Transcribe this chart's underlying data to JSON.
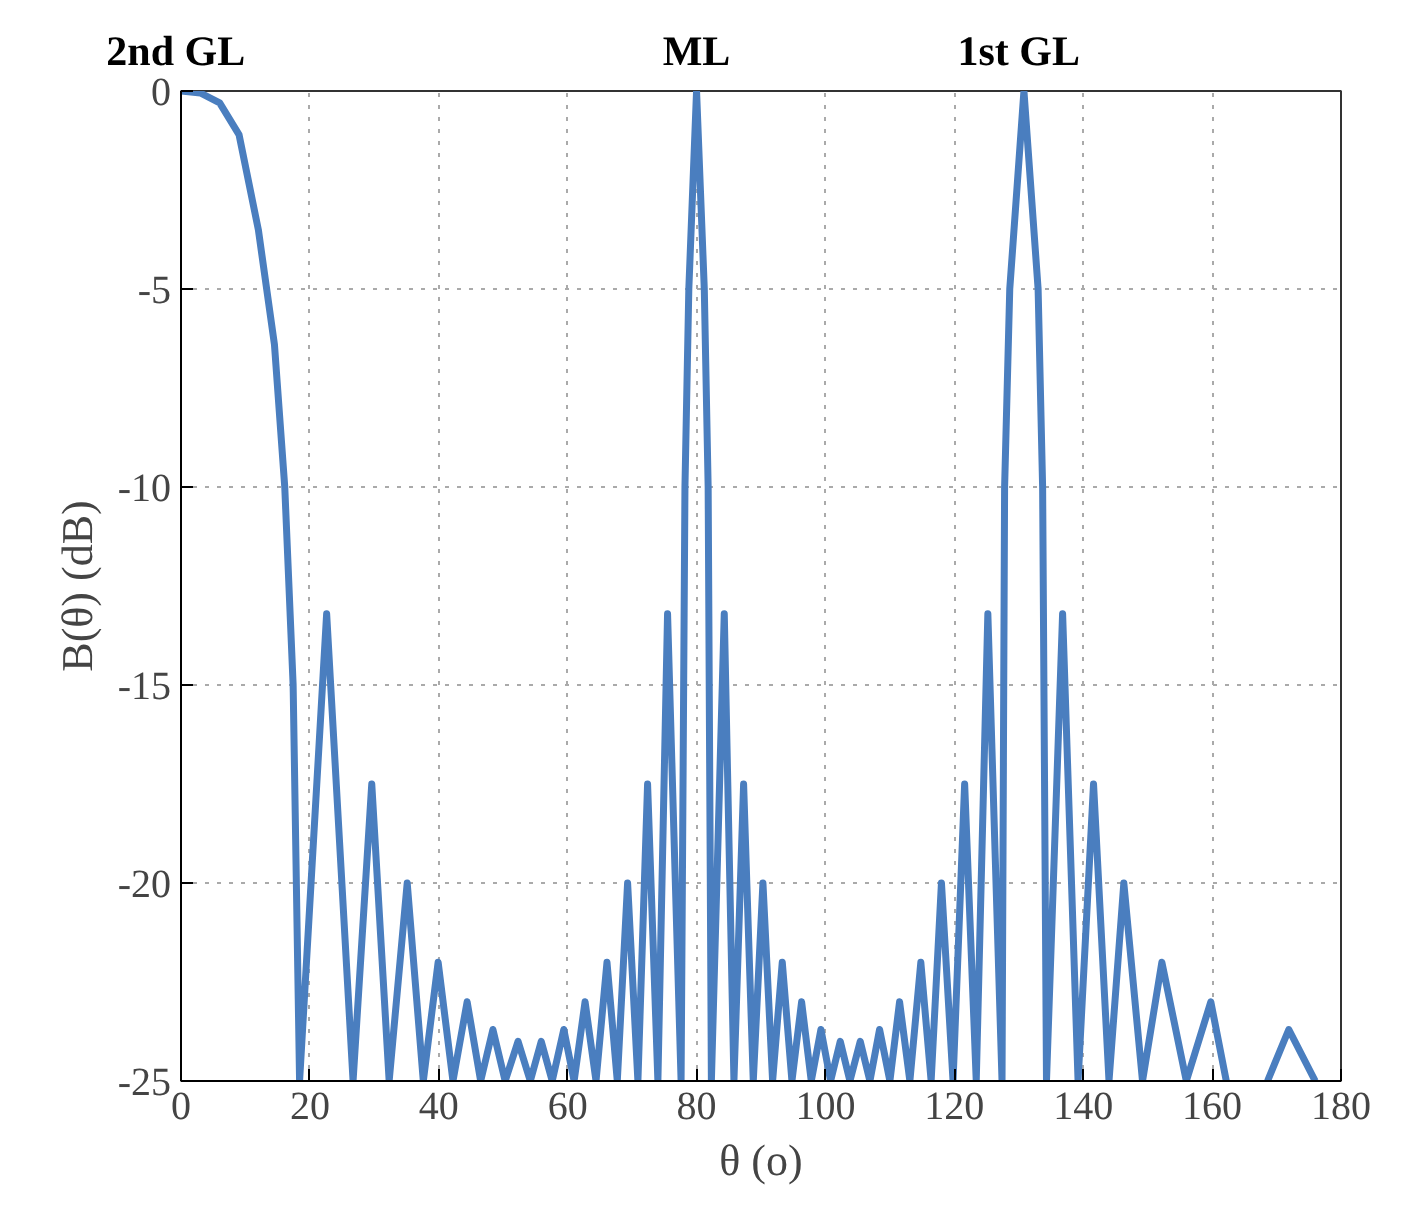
{
  "chart_data": {
    "type": "line",
    "xlabel": "θ (o)",
    "ylabel": "B(θ) (dB)",
    "xlim": [
      0,
      180
    ],
    "ylim": [
      -25,
      0
    ],
    "xticks": [
      0,
      20,
      40,
      60,
      80,
      100,
      120,
      140,
      160,
      180
    ],
    "yticks": [
      0,
      -5,
      -10,
      -15,
      -20,
      -25
    ],
    "grid": true,
    "line_style": "solid",
    "marker": "none",
    "annotations": [
      {
        "text": "2nd  GL",
        "x": 0,
        "y": 0
      },
      {
        "text": "ML",
        "x": 80,
        "y": 0
      },
      {
        "text": "1st  GL",
        "x": 130.8,
        "y": 0
      }
    ],
    "series": [
      {
        "color": "#4a7ebf",
        "x": [
          0,
          3,
          6,
          9,
          12,
          14.5,
          16.1,
          17.4,
          18.4,
          22.6,
          26.7,
          29.6,
          32.3,
          35.1,
          37.6,
          39.9,
          42.2,
          44.4,
          46.5,
          48.4,
          50.3,
          52.3,
          54.2,
          55.9,
          57.6,
          59.4,
          61,
          62.7,
          64.4,
          66.1,
          67.7,
          69.3,
          70.9,
          72.4,
          74,
          75.5,
          77.6,
          78.2,
          78.8,
          80,
          81.2,
          81.8,
          82.3,
          84.3,
          85.8,
          87.3,
          88.8,
          90.3,
          91.8,
          93.3,
          94.8,
          96.3,
          97.8,
          99.3,
          100.8,
          102.3,
          103.8,
          105.4,
          106.9,
          108.4,
          110,
          111.5,
          113.1,
          114.8,
          116.4,
          118,
          119.8,
          121.6,
          123.4,
          125.2,
          127.4,
          127.8,
          128.6,
          130.8,
          133,
          133.7,
          134.3,
          136.8,
          139.2,
          141.6,
          144,
          146.3,
          149.2,
          152.2,
          156,
          159.8,
          162.2,
          165,
          168.6,
          171.9,
          176
        ],
        "values": [
          0,
          -0.05,
          -0.3,
          -1.1,
          -3.5,
          -6.4,
          -10,
          -15,
          -25,
          -13.2,
          -25,
          -17.5,
          -25,
          -20,
          -25,
          -22,
          -25,
          -23,
          -25,
          -23.7,
          -25,
          -24,
          -25,
          -24,
          -25,
          -23.7,
          -25,
          -23,
          -25,
          -22,
          -25,
          -20,
          -25,
          -17.5,
          -25,
          -13.2,
          -25,
          -10,
          -5,
          0,
          -5,
          -10,
          -25,
          -13.2,
          -25,
          -17.5,
          -25,
          -20,
          -25,
          -22,
          -25,
          -23,
          -25,
          -23.7,
          -25,
          -24,
          -25,
          -24,
          -25,
          -23.7,
          -25,
          -23,
          -25,
          -22,
          -25,
          -20,
          -25,
          -17.5,
          -25,
          -13.2,
          -25,
          -10,
          -5,
          0,
          -5,
          -10,
          -25,
          -13.2,
          -25,
          -17.5,
          -25,
          -20,
          -25,
          -22,
          -25,
          -23,
          -25,
          null,
          -25,
          -23.7,
          -25
        ]
      }
    ]
  }
}
